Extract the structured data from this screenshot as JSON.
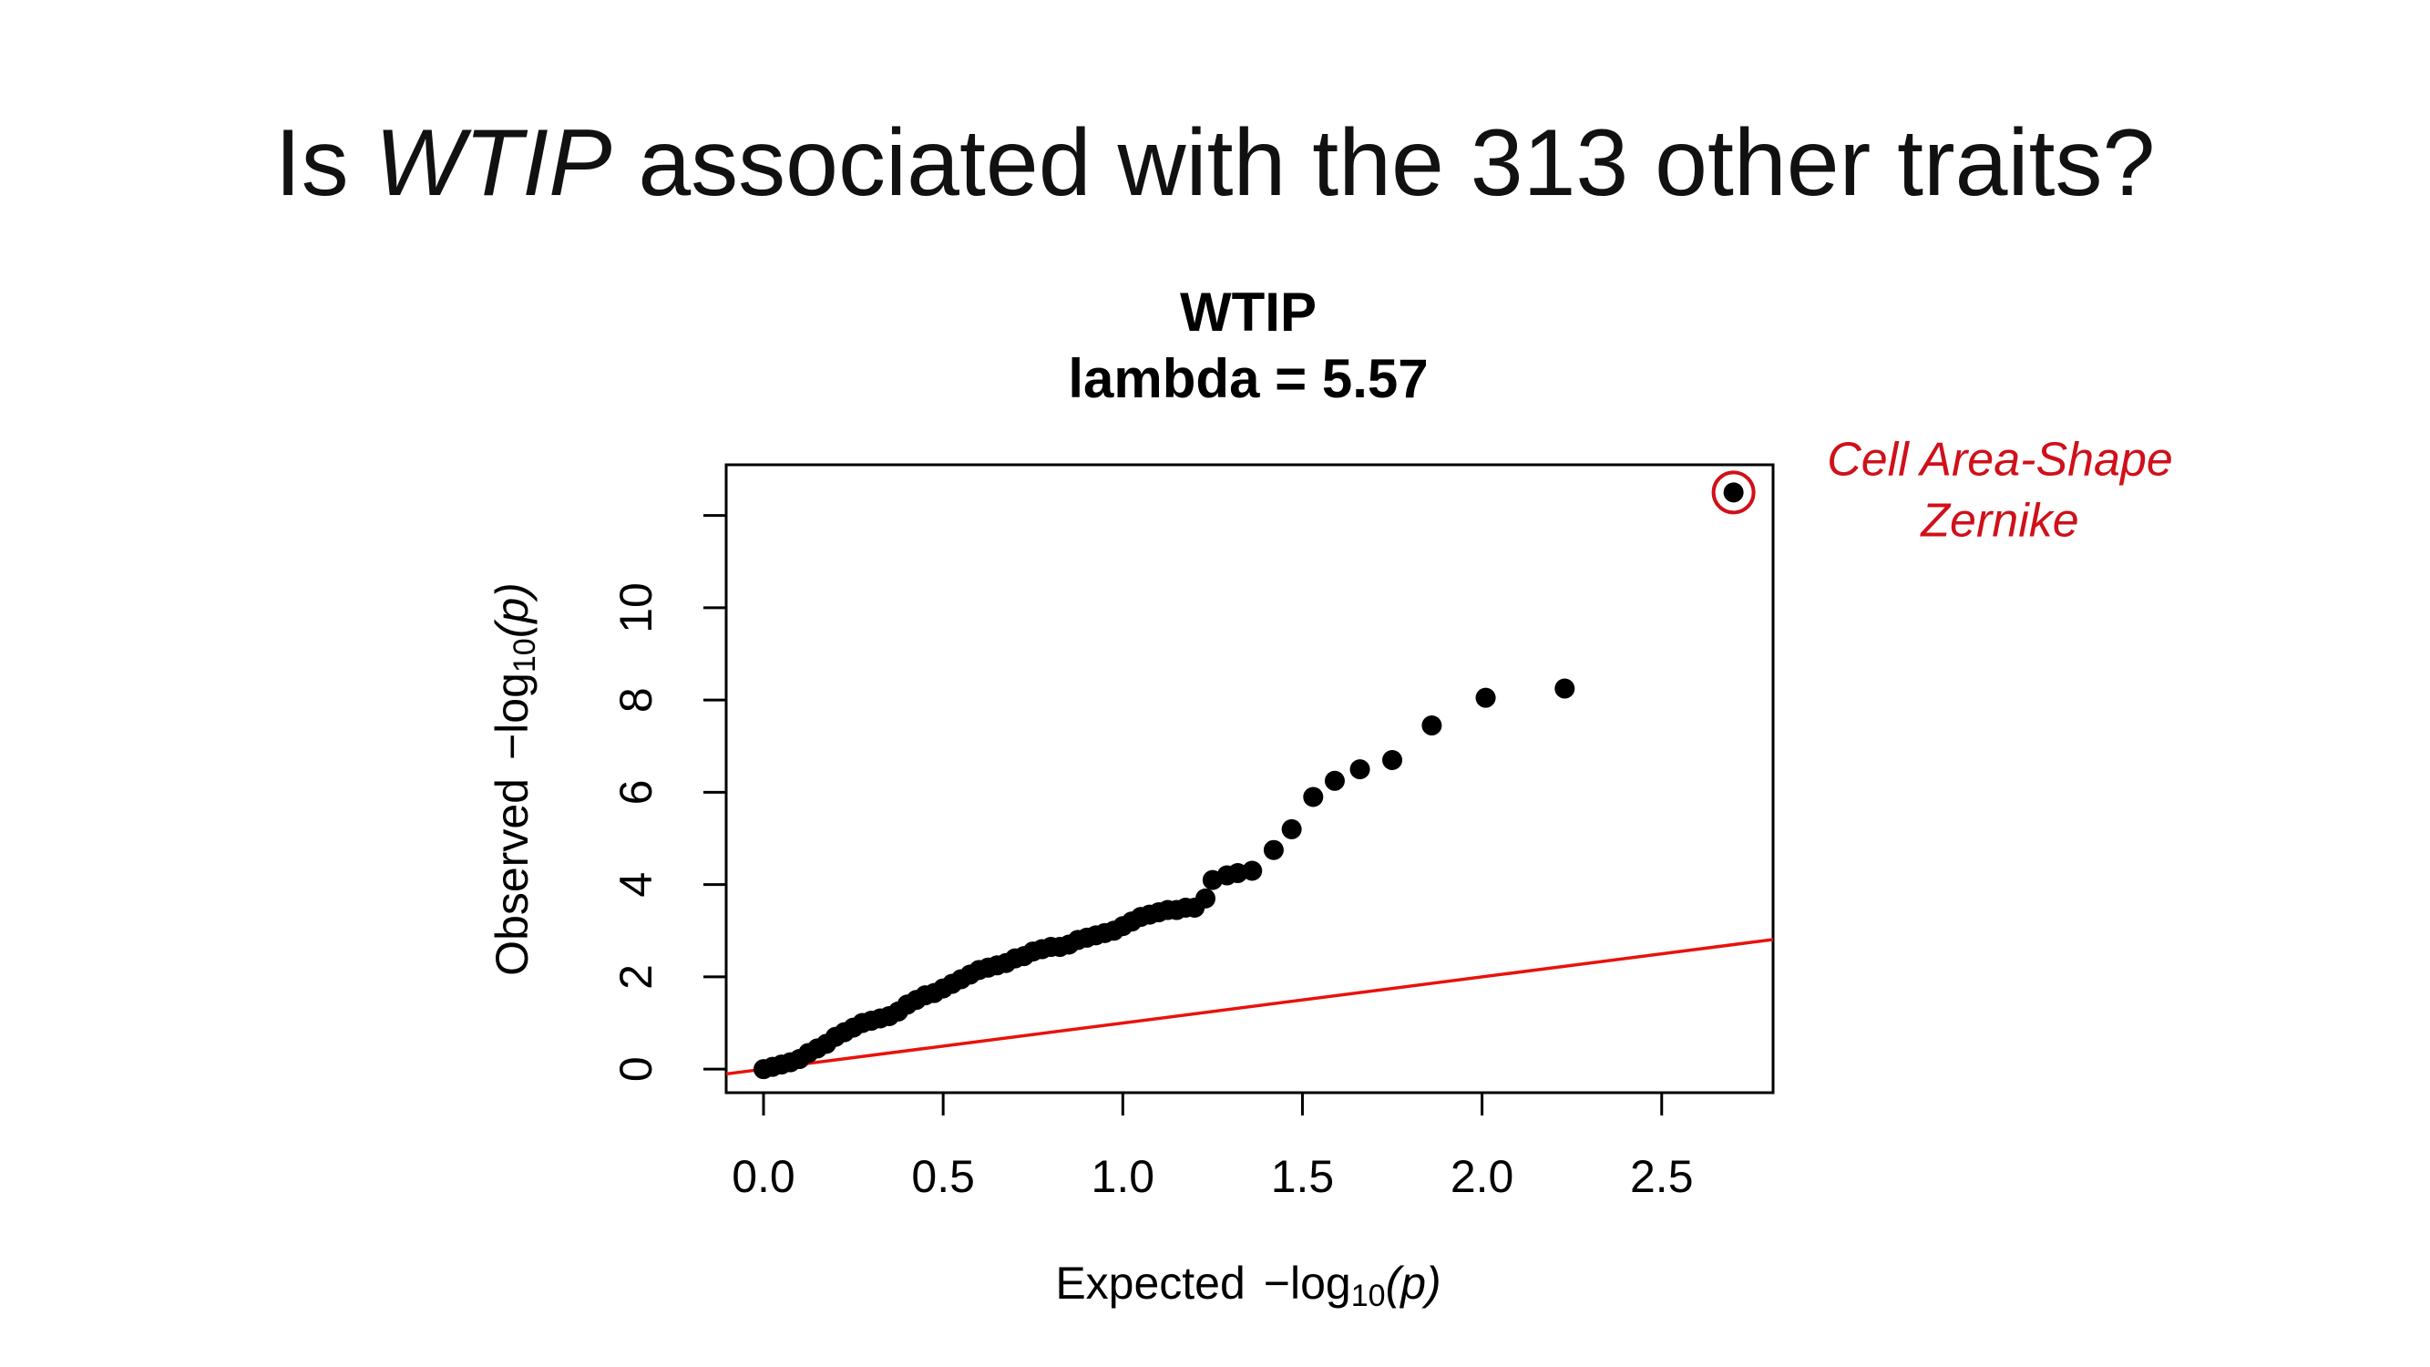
{
  "slide_title": {
    "lead": "Is",
    "gene": "WTIP",
    "rest": "associated with the 313 other traits?"
  },
  "chart_data": {
    "type": "scatter",
    "title": "WTIP",
    "subtitle": "lambda = 5.57",
    "xlabel": {
      "text": "Expected",
      "fn": "−log",
      "sub": "10",
      "arg": "(p)"
    },
    "ylabel": {
      "text": "Observed",
      "fn": "−log",
      "sub": "10",
      "arg": "(p)"
    },
    "xlim": [
      -0.104,
      2.81
    ],
    "ylim": [
      -0.51,
      13.1
    ],
    "xticks": [
      {
        "value": 0,
        "label": "0.0"
      },
      {
        "value": 0.5,
        "label": "0.5"
      },
      {
        "value": 1,
        "label": "1.0"
      },
      {
        "value": 1.5,
        "label": "1.5"
      },
      {
        "value": 2,
        "label": "2.0"
      },
      {
        "value": 2.5,
        "label": "2.5"
      }
    ],
    "yticks": [
      0,
      2,
      4,
      6,
      8,
      10
    ],
    "unlabeled_yticks": [
      12
    ],
    "point_color": "#000000",
    "reference_line": {
      "slope": 1,
      "intercept": 0,
      "color": "#e8120c"
    },
    "x": [
      0,
      0.025,
      0.05,
      0.075,
      0.1,
      0.125,
      0.15,
      0.175,
      0.2,
      0.225,
      0.25,
      0.275,
      0.3,
      0.325,
      0.35,
      0.375,
      0.4,
      0.425,
      0.45,
      0.475,
      0.5,
      0.525,
      0.55,
      0.575,
      0.6,
      0.625,
      0.65,
      0.675,
      0.7,
      0.725,
      0.75,
      0.775,
      0.8,
      0.825,
      0.85,
      0.875,
      0.9,
      0.925,
      0.95,
      0.975,
      1.0,
      1.025,
      1.05,
      1.075,
      1.1,
      1.125,
      1.15,
      1.175,
      1.2,
      1.23,
      1.25,
      1.29,
      1.32,
      1.36,
      1.42,
      1.47,
      1.53,
      1.59,
      1.66,
      1.75,
      1.86,
      2.01,
      2.23,
      2.7
    ],
    "values": [
      0.0,
      0.05,
      0.1,
      0.15,
      0.22,
      0.35,
      0.45,
      0.55,
      0.7,
      0.8,
      0.9,
      1.0,
      1.05,
      1.1,
      1.15,
      1.25,
      1.4,
      1.5,
      1.6,
      1.65,
      1.75,
      1.85,
      1.95,
      2.05,
      2.15,
      2.2,
      2.25,
      2.3,
      2.4,
      2.45,
      2.55,
      2.6,
      2.65,
      2.65,
      2.7,
      2.8,
      2.85,
      2.9,
      2.95,
      3.0,
      3.1,
      3.2,
      3.3,
      3.35,
      3.4,
      3.45,
      3.45,
      3.5,
      3.5,
      3.7,
      4.1,
      4.2,
      4.25,
      4.3,
      4.75,
      5.2,
      5.9,
      6.25,
      6.5,
      6.7,
      7.45,
      8.05,
      8.25,
      12.5
    ],
    "annotation": {
      "lines": [
        "Cell Area-Shape",
        "Zernike"
      ],
      "color": "#d0101a",
      "point": 63
    }
  }
}
